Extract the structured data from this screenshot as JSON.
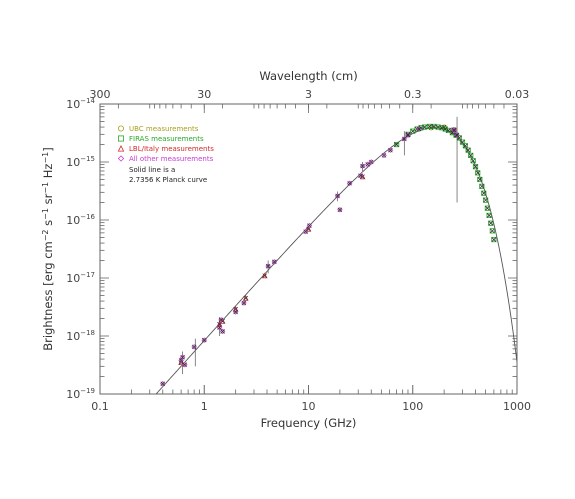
{
  "chart_data": {
    "type": "scatter",
    "xlabel": "Frequency (GHz)",
    "top_xlabel": "Wavelength (cm)",
    "ylabel_parts": {
      "prefix": "Brightness [erg cm",
      "exp1": "−2",
      "mid1": " s",
      "exp2": "−1",
      "mid2": " sr",
      "exp3": "−1",
      "mid3": " Hz",
      "exp4": "−1",
      "suffix": "]"
    },
    "x_scale": "log",
    "y_scale": "log",
    "xlim": [
      0.1,
      1000
    ],
    "ylim": [
      1e-19,
      1e-14
    ],
    "x_ticks": [
      {
        "value": 0.1,
        "label": "0.1"
      },
      {
        "value": 1,
        "label": "1"
      },
      {
        "value": 10,
        "label": "10"
      },
      {
        "value": 100,
        "label": "100"
      },
      {
        "value": 1000,
        "label": "1000"
      }
    ],
    "top_ticks": [
      {
        "value": 300,
        "label": "300"
      },
      {
        "value": 30,
        "label": "30"
      },
      {
        "value": 3,
        "label": "3"
      },
      {
        "value": 0.3,
        "label": "0.3"
      },
      {
        "value": 0.03,
        "label": "0.03"
      }
    ],
    "y_ticks": [
      {
        "value": 1e-19,
        "base": "10",
        "exp": "−19"
      },
      {
        "value": 1e-18,
        "base": "10",
        "exp": "−18"
      },
      {
        "value": 1e-17,
        "base": "10",
        "exp": "−17"
      },
      {
        "value": 1e-16,
        "base": "10",
        "exp": "−16"
      },
      {
        "value": 1e-15,
        "base": "10",
        "exp": "−15"
      },
      {
        "value": 1e-14,
        "base": "10",
        "exp": "−14"
      }
    ],
    "legend": {
      "placement": "top-left",
      "entries": [
        {
          "label": "UBC measurements",
          "marker": "circle",
          "color": "#a8a020"
        },
        {
          "label": "FIRAS measurements",
          "marker": "square",
          "color": "#28a828"
        },
        {
          "label": "LBL/Italy measurements",
          "marker": "triangle",
          "color": "#d22a2a"
        },
        {
          "label": "All other measurements",
          "marker": "diamond",
          "color": "#c83cd2"
        }
      ],
      "note_lines": [
        "Solid line is a",
        "2.7356 K Planck curve"
      ]
    },
    "curve": {
      "temperature_K": 2.7356,
      "color": "#555555"
    },
    "series": [
      {
        "name": "UBC measurements",
        "color": "#a8a020",
        "points": [
          [
            150,
            3.9e-15
          ],
          [
            200,
            4e-15
          ],
          [
            250,
            3.6e-15
          ]
        ]
      },
      {
        "name": "FIRAS measurements",
        "color": "#28a828",
        "points": [
          [
            70,
            2e-15
          ],
          [
            90,
            3e-15
          ],
          [
            100,
            3.4e-15
          ],
          [
            110,
            3.7e-15
          ],
          [
            120,
            3.9e-15
          ],
          [
            130,
            4e-15
          ],
          [
            145,
            4.1e-15
          ],
          [
            160,
            4.1e-15
          ],
          [
            175,
            4e-15
          ],
          [
            190,
            3.9e-15
          ],
          [
            205,
            3.7e-15
          ],
          [
            220,
            3.5e-15
          ],
          [
            240,
            3.2e-15
          ],
          [
            260,
            2.9e-15
          ],
          [
            280,
            2.6e-15
          ],
          [
            300,
            2.2e-15
          ],
          [
            320,
            1.9e-15
          ],
          [
            340,
            1.6e-15
          ],
          [
            360,
            1.3e-15
          ],
          [
            380,
            1.05e-15
          ],
          [
            400,
            8.3e-16
          ],
          [
            420,
            6.5e-16
          ],
          [
            440,
            5e-16
          ],
          [
            460,
            3.8e-16
          ],
          [
            480,
            2.9e-16
          ],
          [
            500,
            2.2e-16
          ],
          [
            520,
            1.6e-16
          ],
          [
            540,
            1.2e-16
          ],
          [
            560,
            8.8e-17
          ],
          [
            580,
            6.5e-17
          ],
          [
            600,
            4.6e-17
          ]
        ]
      },
      {
        "name": "LBL/Italy measurements",
        "color": "#d22a2a",
        "points": [
          [
            0.6,
            3.5e-19
          ],
          [
            1.4,
            1.6e-18
          ],
          [
            1.5,
            1.8e-18
          ],
          [
            2.0,
            2.9e-18
          ],
          [
            2.5,
            4.5e-18
          ],
          [
            3.8,
            1.1e-17
          ],
          [
            10,
            7e-17
          ],
          [
            33,
            5.6e-16
          ]
        ]
      },
      {
        "name": "All other measurements",
        "color": "#c83cd2",
        "points": [
          [
            0.4,
            1.5e-19
          ],
          [
            0.6,
            3.8e-19
          ],
          [
            0.62,
            4.3e-19
          ],
          [
            0.65,
            3.2e-19
          ],
          [
            0.8,
            6.5e-19
          ],
          [
            1.0,
            8.5e-19
          ],
          [
            1.4,
            1.4e-18
          ],
          [
            1.45,
            1.9e-18
          ],
          [
            1.5,
            1.2e-18
          ],
          [
            2.0,
            2.6e-18
          ],
          [
            2.4,
            3.7e-18
          ],
          [
            4.1,
            1.6e-17
          ],
          [
            4.7,
            1.9e-17
          ],
          [
            9.4,
            6.3e-17
          ],
          [
            10.2,
            8e-17
          ],
          [
            19,
            2.6e-16
          ],
          [
            20,
            1.5e-16
          ],
          [
            24.8,
            4.3e-16
          ],
          [
            31.5,
            5.8e-16
          ],
          [
            33,
            8.5e-16
          ],
          [
            37,
            9.1e-16
          ],
          [
            40,
            1e-15
          ],
          [
            53,
            1.3e-15
          ],
          [
            61,
            1.6e-15
          ],
          [
            83,
            2.5e-15
          ],
          [
            90,
            2.9e-15
          ],
          [
            115,
            3.7e-15
          ],
          [
            245,
            3.6e-15
          ],
          [
            250,
            3.5e-15
          ],
          [
            266,
            2.9e-15
          ]
        ]
      }
    ],
    "error_bars": [
      {
        "x": 0.62,
        "y_low": 2.2e-19,
        "y_high": 5.4e-19
      },
      {
        "x": 0.82,
        "y_low": 3e-19,
        "y_high": 9e-19
      },
      {
        "x": 1.4,
        "y_low": 1e-18,
        "y_high": 2.1e-18
      },
      {
        "x": 4.1,
        "y_low": 1.2e-17,
        "y_high": 2e-17
      },
      {
        "x": 19,
        "y_low": 2.1e-16,
        "y_high": 3.1e-16
      },
      {
        "x": 33,
        "y_low": 7e-16,
        "y_high": 1e-15
      },
      {
        "x": 83,
        "y_low": 1.3e-15,
        "y_high": 3.4e-15
      },
      {
        "x": 266,
        "y_low": 2e-16,
        "y_high": 6e-15
      }
    ]
  }
}
